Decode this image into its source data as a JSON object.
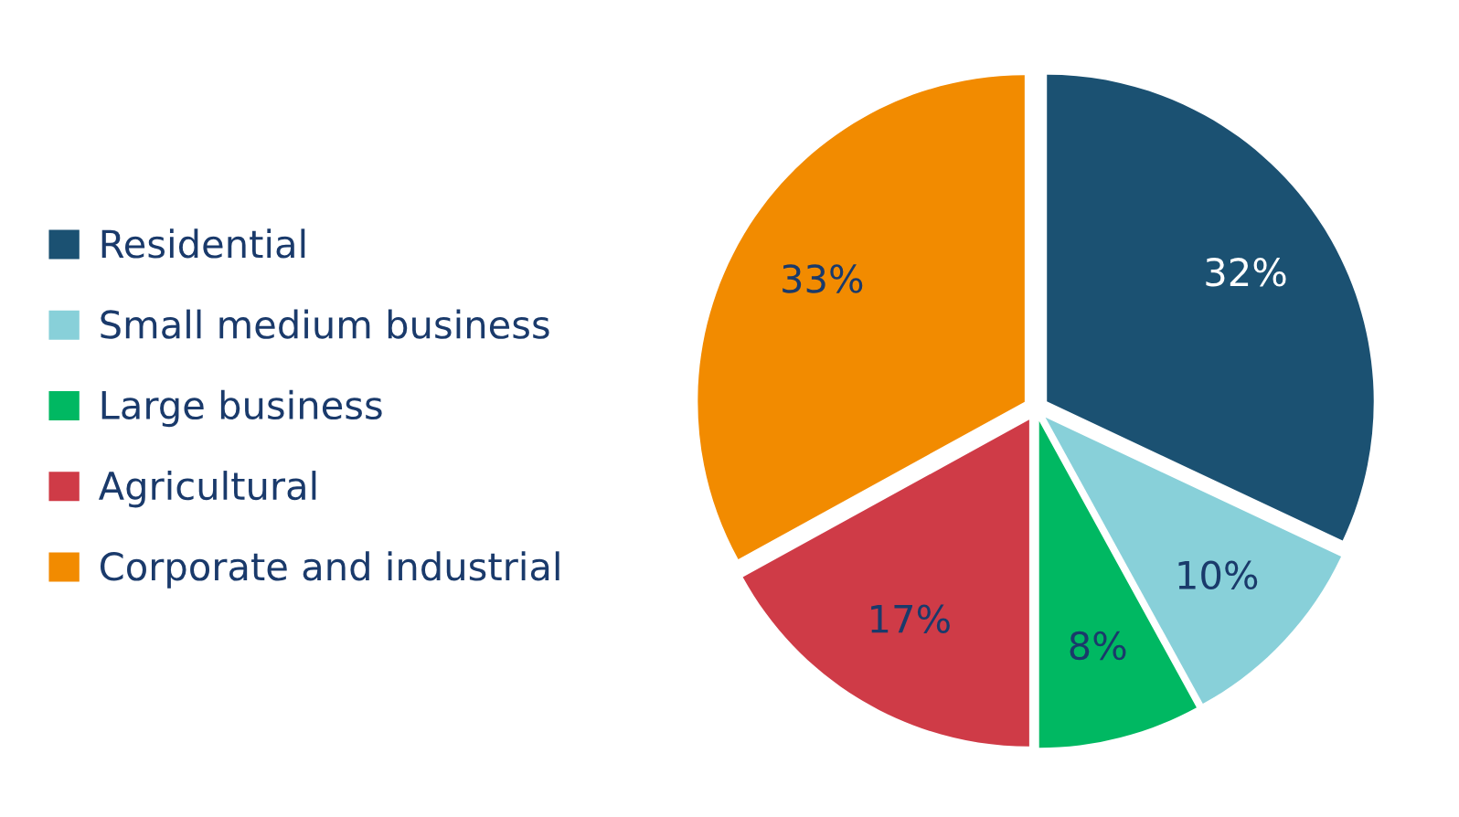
{
  "chart_data": {
    "type": "pie",
    "categories": [
      "Residential",
      "Small medium business",
      "Large business",
      "Agricultural",
      "Corporate and industrial"
    ],
    "values": [
      32,
      10,
      8,
      17,
      33
    ],
    "value_labels": [
      "32%",
      "10%",
      "8%",
      "17%",
      "33%"
    ],
    "colors": [
      "#1b5172",
      "#88d0d9",
      "#00b862",
      "#cf3b47",
      "#f28b00"
    ],
    "legend": "left"
  }
}
